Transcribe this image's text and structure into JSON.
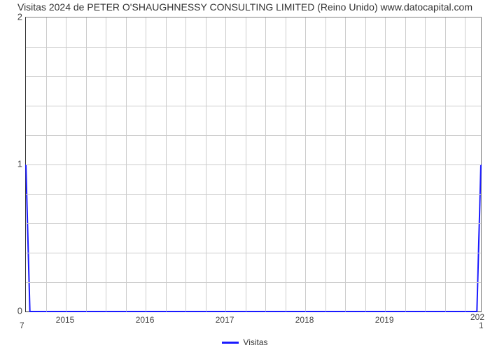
{
  "chart": {
    "type": "line",
    "title": "Visitas 2024 de PETER O'SHAUGHNESSY CONSULTING LIMITED (Reino Unido) www.datocapital.com",
    "title_fontsize": 14,
    "title_color": "#333333",
    "background_color": "#ffffff",
    "plot_border_color": "#808080",
    "axis_color": "#333333",
    "grid_color": "#cccccc",
    "tick_label_color": "#444444",
    "tick_label_fontsize": 13,
    "line_color": "#1a1aff",
    "line_width": 2,
    "x_domain": [
      2014.5,
      2020.2
    ],
    "y_domain": [
      0,
      2
    ],
    "y_ticks": [
      0,
      1,
      2
    ],
    "y_minor_count": 4,
    "x_ticks": [
      2015,
      2016,
      2017,
      2018,
      2019
    ],
    "x_minor_step": 0.25,
    "series": {
      "label": "Visitas",
      "x": [
        2014.5,
        2014.55,
        2020.15,
        2020.2
      ],
      "y": [
        1.0,
        0.0,
        0.0,
        1.0
      ]
    },
    "corner_bottom_left": "7",
    "corner_bottom_right_top": "202",
    "corner_bottom_right_bottom": "1"
  }
}
